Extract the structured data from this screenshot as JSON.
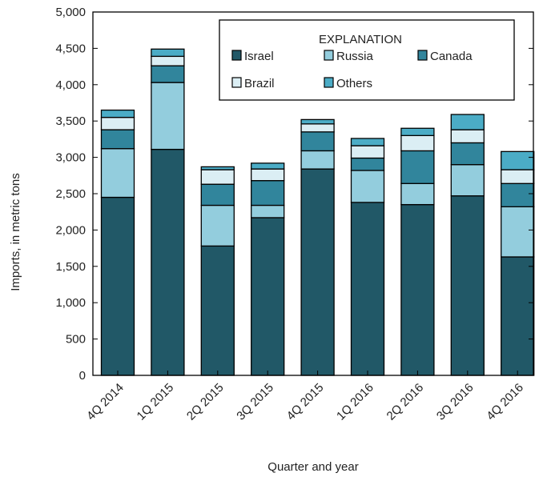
{
  "chart_data": {
    "type": "bar",
    "stacked": true,
    "title": "",
    "xlabel": "Quarter and year",
    "ylabel": "Imports, in metric tons",
    "ylim": [
      0,
      5000
    ],
    "yticks": [
      0,
      500,
      1000,
      1500,
      2000,
      2500,
      3000,
      3500,
      4000,
      4500,
      5000
    ],
    "ytick_labels": [
      "0",
      "500",
      "1,000",
      "1,500",
      "2,000",
      "2,500",
      "3,000",
      "3,500",
      "4,000",
      "4,500",
      "5,000"
    ],
    "categories": [
      "4Q 2014",
      "1Q 2015",
      "2Q 2015",
      "3Q 2015",
      "4Q 2015",
      "1Q 2016",
      "2Q 2016",
      "3Q 2016",
      "4Q 2016"
    ],
    "legend_title": "EXPLANATION",
    "legend_position": "top-right",
    "grid": false,
    "series": [
      {
        "name": "Israel",
        "color": "#215867",
        "values": [
          2450,
          3110,
          1780,
          2170,
          2840,
          2380,
          2350,
          2470,
          1630
        ]
      },
      {
        "name": "Russia",
        "color": "#93cddd",
        "values": [
          670,
          920,
          560,
          170,
          250,
          440,
          290,
          430,
          690
        ]
      },
      {
        "name": "Canada",
        "color": "#31859c",
        "values": [
          260,
          230,
          290,
          340,
          260,
          170,
          450,
          300,
          320
        ]
      },
      {
        "name": "Brazil",
        "color": "#dbeef4",
        "values": [
          170,
          130,
          200,
          160,
          110,
          170,
          210,
          180,
          190
        ]
      },
      {
        "name": "Others",
        "color": "#4bacc6",
        "values": [
          100,
          100,
          40,
          80,
          60,
          100,
          100,
          210,
          250
        ]
      }
    ]
  }
}
